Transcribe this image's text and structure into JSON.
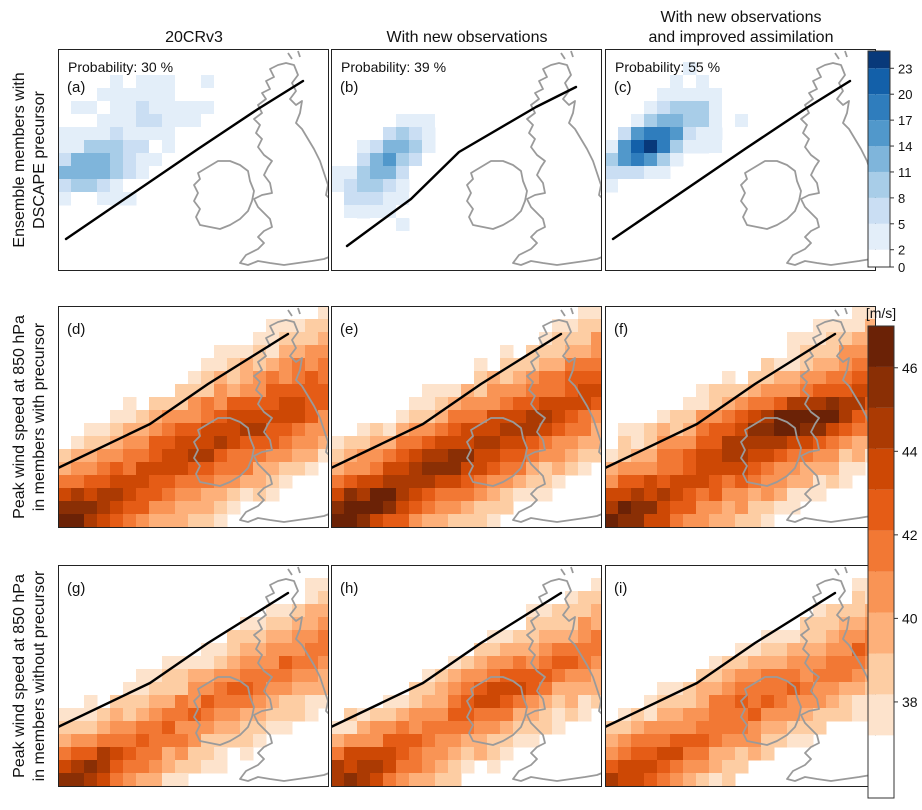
{
  "figure": {
    "column_titles": [
      [
        "20CRv3"
      ],
      [
        "With new observations"
      ],
      [
        "With new observations",
        "and improved assimilation"
      ]
    ],
    "row_labels": [
      [
        "Ensemble members with",
        "DSCAPE precursor"
      ],
      [
        "Peak wind speed at 850 hPa",
        "in members with precursor"
      ],
      [
        "Peak wind speed at 850 hPa",
        "in members without precursor"
      ]
    ],
    "panel_letters": [
      "(a)",
      "(b)",
      "(c)",
      "(d)",
      "(e)",
      "(f)",
      "(g)",
      "(h)",
      "(i)"
    ],
    "probabilities": [
      "Probability: 30 %",
      "Probability: 39 %",
      "Probability: 55 %"
    ],
    "colorbar_blue": {
      "ticks": [
        "0",
        "2",
        "5",
        "8",
        "11",
        "14",
        "17",
        "20",
        "23"
      ],
      "colors": [
        "#ffffff",
        "#e3eef9",
        "#cadef3",
        "#a8cde8",
        "#7fb5db",
        "#5198cb",
        "#2f7dbd",
        "#1360a9",
        "#08397a"
      ]
    },
    "colorbar_orange": {
      "unit": "[m/s]",
      "ticks": [
        "38",
        "40",
        "42",
        "44",
        "46"
      ],
      "colors": [
        "#ffffff",
        "#fde3cc",
        "#fdcda3",
        "#fdb07a",
        "#f99455",
        "#f27834",
        "#e55c16",
        "#cd4805",
        "#ab3a03",
        "#8a2f05",
        "#6b2206"
      ]
    }
  },
  "chart_data": [
    {
      "panel": "(a)",
      "type": "heatmap",
      "field": "Ensemble members with DSCAPE precursor",
      "experiment": "20CRv3",
      "probability_percent": 30,
      "levels": [
        0,
        2,
        5,
        8,
        11,
        14,
        17,
        20,
        23
      ],
      "max_members": 14,
      "track": true
    },
    {
      "panel": "(b)",
      "type": "heatmap",
      "field": "Ensemble members with DSCAPE precursor",
      "experiment": "With new observations",
      "probability_percent": 39,
      "levels": [
        0,
        2,
        5,
        8,
        11,
        14,
        17,
        20,
        23
      ],
      "max_members": 14,
      "track": true
    },
    {
      "panel": "(c)",
      "type": "heatmap",
      "field": "Ensemble members with DSCAPE precursor",
      "experiment": "With new observations and improved assimilation",
      "probability_percent": 55,
      "levels": [
        0,
        2,
        5,
        8,
        11,
        14,
        17,
        20,
        23
      ],
      "max_members": 23,
      "track": true
    },
    {
      "panel": "(d)",
      "type": "heatmap",
      "field": "Peak wind speed at 850 hPa in members with precursor",
      "unit": "m/s",
      "experiment": "20CRv3",
      "range": [
        38,
        46
      ],
      "track": true
    },
    {
      "panel": "(e)",
      "type": "heatmap",
      "field": "Peak wind speed at 850 hPa in members with precursor",
      "unit": "m/s",
      "experiment": "With new observations",
      "range": [
        38,
        46
      ],
      "track": true
    },
    {
      "panel": "(f)",
      "type": "heatmap",
      "field": "Peak wind speed at 850 hPa in members with precursor",
      "unit": "m/s",
      "experiment": "With new observations and improved assimilation",
      "range": [
        38,
        47
      ],
      "track": true
    },
    {
      "panel": "(g)",
      "type": "heatmap",
      "field": "Peak wind speed at 850 hPa in members without precursor",
      "unit": "m/s",
      "experiment": "20CRv3",
      "range": [
        38,
        45
      ],
      "track": true
    },
    {
      "panel": "(h)",
      "type": "heatmap",
      "field": "Peak wind speed at 850 hPa in members without precursor",
      "unit": "m/s",
      "experiment": "With new observations",
      "range": [
        38,
        45
      ],
      "track": true
    },
    {
      "panel": "(i)",
      "type": "heatmap",
      "field": "Peak wind speed at 850 hPa in members without precursor",
      "unit": "m/s",
      "experiment": "With new observations and improved assimilation",
      "range": [
        38,
        44
      ],
      "track": true
    }
  ]
}
